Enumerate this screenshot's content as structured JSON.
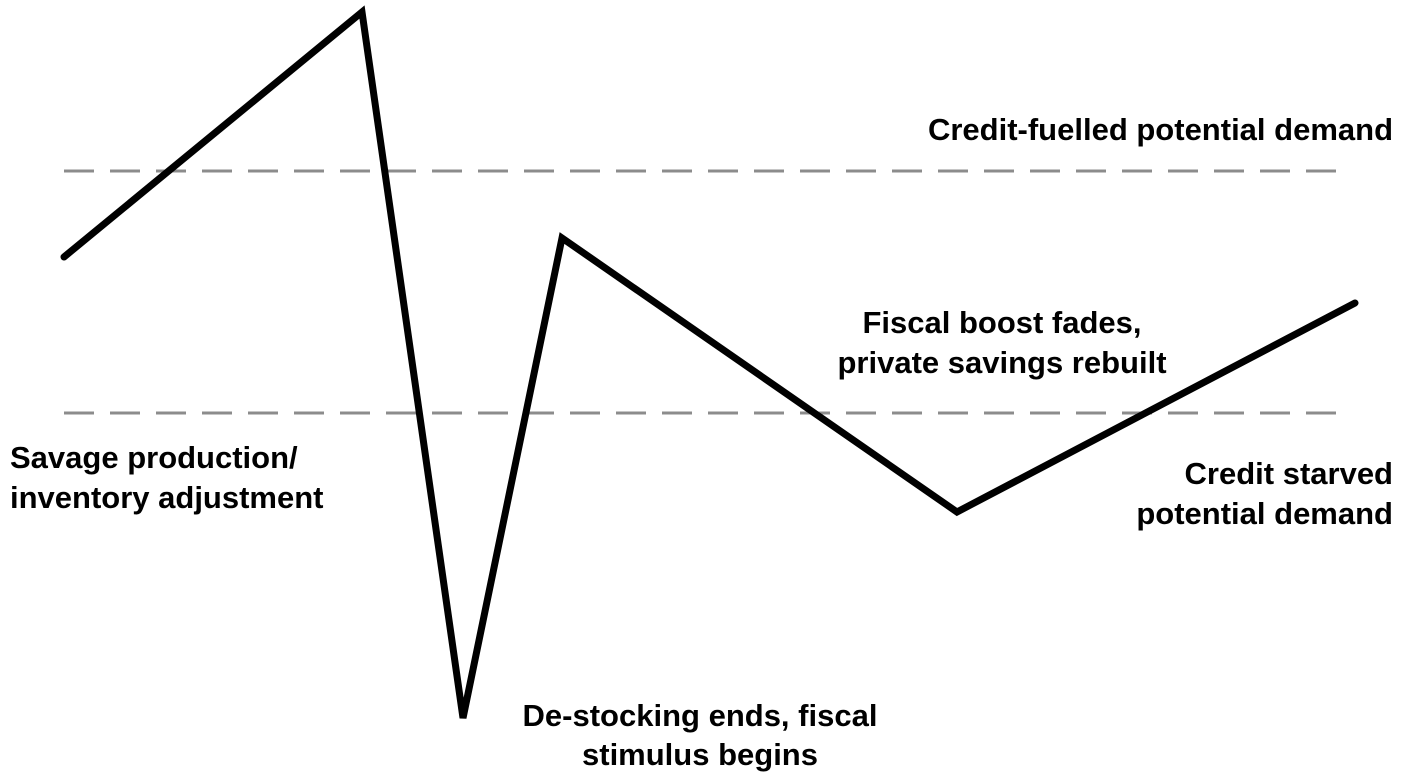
{
  "labels": {
    "upper_band": [
      "Credit-fuelled potential demand"
    ],
    "fiscal_fade": [
      "Fiscal boost fades,",
      "private savings rebuilt"
    ],
    "savage": [
      "Savage production/",
      "inventory adjustment"
    ],
    "lower_band": [
      "Credit starved",
      "potential demand"
    ],
    "destocking": [
      "De-stocking ends, fiscal",
      "stimulus begins"
    ]
  }
}
